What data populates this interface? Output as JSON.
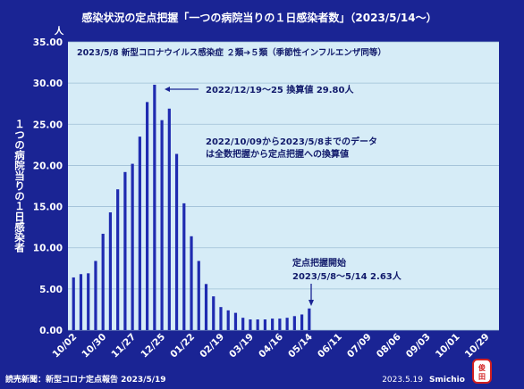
{
  "chart_data": {
    "type": "bar",
    "title": "感染状況の定点把握「一つの病院当りの１日感染者数」（2023/5/14～）",
    "ylabel": "１つの病院当りの１日感染者",
    "yunit": "人",
    "ylim": [
      0,
      35
    ],
    "yticks": [
      "0.00",
      "5.00",
      "10.00",
      "15.00",
      "20.00",
      "25.00",
      "30.00",
      "35.00"
    ],
    "xtick_labels": [
      "10/02",
      "10/30",
      "11/27",
      "12/25",
      "01/22",
      "02/19",
      "03/19",
      "04/16",
      "05/14",
      "06/11",
      "07/09",
      "08/06",
      "09/03",
      "10/01",
      "10/29"
    ],
    "x": [
      "10/02",
      "10/09",
      "10/16",
      "10/23",
      "10/30",
      "11/06",
      "11/13",
      "11/20",
      "11/27",
      "12/04",
      "12/11",
      "12/18",
      "12/25",
      "01/01",
      "01/08",
      "01/15",
      "01/22",
      "01/29",
      "02/05",
      "02/12",
      "02/19",
      "02/26",
      "03/05",
      "03/12",
      "03/19",
      "03/26",
      "04/02",
      "04/09",
      "04/16",
      "04/23",
      "04/30",
      "05/07",
      "05/14"
    ],
    "values": [
      6.4,
      6.8,
      6.9,
      8.4,
      11.7,
      14.3,
      17.1,
      19.2,
      20.2,
      23.5,
      27.7,
      29.8,
      25.5,
      26.9,
      21.4,
      15.4,
      11.4,
      8.4,
      5.6,
      4.1,
      2.8,
      2.4,
      2.1,
      1.5,
      1.3,
      1.3,
      1.3,
      1.4,
      1.4,
      1.5,
      1.7,
      1.9,
      2.63
    ],
    "grid": true,
    "annotations": {
      "box": "2023/5/8 新型コロナウイルス感染症 ２類➔５類（季節性インフルエンザ同等）",
      "peak": "2022/12/19～25 換算値 29.80人",
      "conversion_line1": "2022/10/09から2023/5/8までのデータ",
      "conversion_line2": "は全数把握から定点把握への換算値",
      "start_line1": "定点把握開始",
      "start_line2": "2023/5/8～5/14  2.63人"
    }
  },
  "footer": {
    "source": "読売新聞：新型コロナ定点報告  2023/5/19",
    "credit_date": "2023.5.19",
    "credit_name": "Smichio",
    "seal": "俊田"
  },
  "colors": {
    "background": "#1a2494",
    "plot_area": "#d6ecf7",
    "bar": "#1f2bb0",
    "grid": "#9fbfd6"
  }
}
